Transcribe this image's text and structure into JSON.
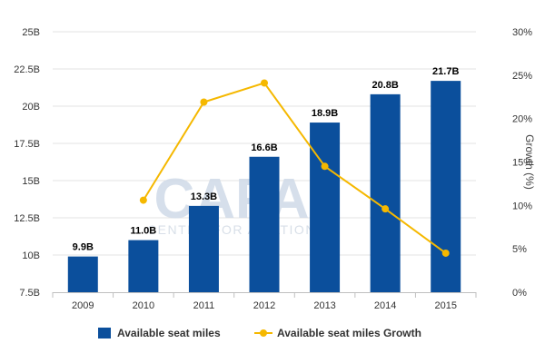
{
  "chart_data": {
    "type": "bar",
    "categories": [
      "2009",
      "2010",
      "2011",
      "2012",
      "2013",
      "2014",
      "2015"
    ],
    "series": [
      {
        "name": "Available seat miles",
        "type": "bar",
        "axis": "left",
        "color": "#0b4f9c",
        "values": [
          9.9,
          11.0,
          13.3,
          16.6,
          18.9,
          20.8,
          21.7
        ],
        "labels": [
          "9.9B",
          "11.0B",
          "13.3B",
          "16.6B",
          "18.9B",
          "20.8B",
          "21.7B"
        ]
      },
      {
        "name": "Available seat miles Growth",
        "type": "line",
        "axis": "right",
        "color": "#f5b800",
        "values": [
          null,
          10.6,
          21.9,
          24.1,
          14.5,
          9.6,
          4.5
        ]
      }
    ],
    "y_left": {
      "min": 7.5,
      "max": 25,
      "step": 2.5,
      "tick_labels": [
        "7.5B",
        "10B",
        "12.5B",
        "15B",
        "17.5B",
        "20B",
        "22.5B",
        "25B"
      ]
    },
    "y_right": {
      "min": 0,
      "max": 30,
      "step": 5,
      "title": "Growth (%)",
      "tick_labels": [
        "0%",
        "5%",
        "10%",
        "15%",
        "20%",
        "25%",
        "30%"
      ]
    },
    "grid": true,
    "legend_position": "bottom-center",
    "watermark": "CAPA CENTRE FOR AVIATION"
  }
}
